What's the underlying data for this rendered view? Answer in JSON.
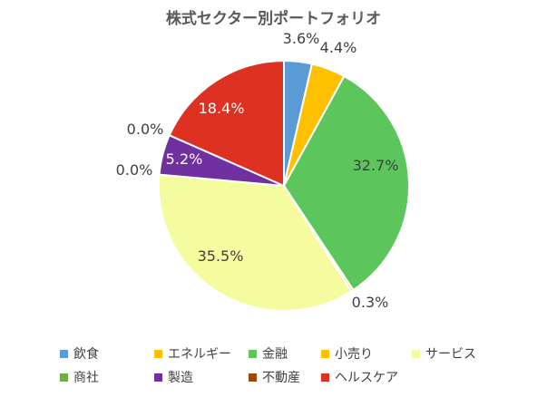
{
  "chart_data": {
    "type": "pie",
    "title": "株式セクター別ポートフォリオ",
    "slices": [
      {
        "name": "飲食",
        "value": 3.6,
        "label": "3.6%",
        "color": "#5b9bd5"
      },
      {
        "name": "エネルギー",
        "value": 4.4,
        "label": "4.4%",
        "color": "#ffc000"
      },
      {
        "name": "金融",
        "value": 32.7,
        "label": "32.7%",
        "color": "#5cc55c"
      },
      {
        "name": "小売り",
        "value": 0.3,
        "label": "0.3%",
        "color": "#ffc000"
      },
      {
        "name": "サービス",
        "value": 35.5,
        "label": "35.5%",
        "color": "#f5fb9f"
      },
      {
        "name": "商社",
        "value": 0.0,
        "label": "0.0%",
        "color": "#70ad47"
      },
      {
        "name": "製造",
        "value": 5.2,
        "label": "5.2%",
        "color": "#7030a0"
      },
      {
        "name": "不動産",
        "value": 0.0,
        "label": "0.0%",
        "color": "#9e480e"
      },
      {
        "name": "ヘルスケア",
        "value": 18.4,
        "label": "18.4%",
        "color": "#dd3222"
      }
    ],
    "legend_position": "bottom"
  }
}
